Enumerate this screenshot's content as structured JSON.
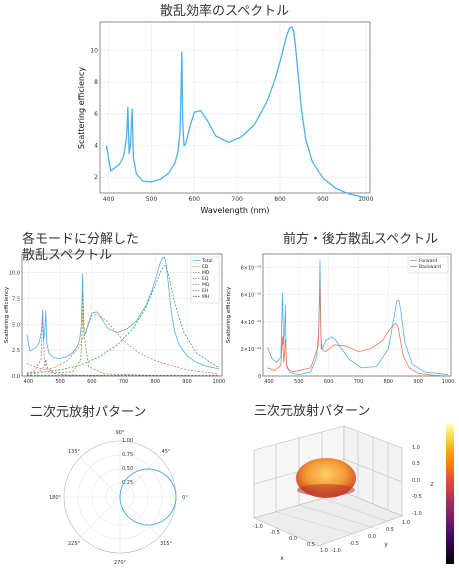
{
  "panels": {
    "spectrum": {
      "title": "散乱効率のスペクトル",
      "xlabel": "Wavelength (nm)",
      "ylabel": "Scattering efficiency"
    },
    "decomp": {
      "title": "各モードに分解した\n散乱スペクトル",
      "ylabel": "Scattering efficiency"
    },
    "fb": {
      "title": "前方・後方散乱スペクトル",
      "ylabel": "Scattering efficiency"
    },
    "polar": {
      "title": "二次元放射パターン"
    },
    "pattern3d": {
      "title": "三次元放射パターン"
    }
  },
  "chart_data": [
    {
      "type": "line",
      "title": "散乱効率のスペクトル",
      "xlabel": "Wavelength (nm)",
      "ylabel": "Scattering efficiency",
      "xlim": [
        380,
        1010
      ],
      "ylim": [
        1,
        11.8
      ],
      "xticks": [
        "400",
        "500",
        "600",
        "700",
        "800",
        "900",
        "1000"
      ],
      "yticks": [
        "2",
        "4",
        "6",
        "8",
        "10"
      ],
      "grid": true,
      "series": [
        {
          "color": "#4fb0e6",
          "x": [
            395,
            405,
            415,
            425,
            435,
            442,
            445,
            448,
            451,
            455,
            458,
            465,
            480,
            500,
            520,
            540,
            555,
            562,
            567,
            571,
            573,
            576,
            580,
            590,
            600,
            615,
            630,
            650,
            680,
            710,
            740,
            770,
            790,
            805,
            815,
            822,
            828,
            832,
            836,
            842,
            850,
            860,
            875,
            900,
            930,
            960,
            1000
          ],
          "y": [
            4.0,
            2.4,
            2.6,
            2.8,
            3.3,
            4.5,
            6.4,
            3.5,
            4.0,
            6.3,
            3.2,
            2.2,
            1.75,
            1.7,
            1.85,
            2.25,
            2.9,
            3.6,
            5.0,
            9.9,
            5.5,
            4.0,
            4.1,
            5.2,
            6.1,
            6.2,
            5.6,
            4.6,
            4.2,
            4.55,
            5.3,
            6.8,
            8.3,
            9.8,
            10.9,
            11.4,
            11.5,
            11.2,
            10.3,
            8.6,
            6.3,
            4.4,
            3.0,
            1.95,
            1.3,
            0.95,
            0.7
          ]
        }
      ]
    },
    {
      "type": "line",
      "title": "各モードに分解した\n散乱スペクトル",
      "xlabel": "",
      "ylabel": "Scattering efficiency",
      "xlim": [
        380,
        1010
      ],
      "ylim": [
        0,
        11.8
      ],
      "xticks": [
        "400",
        "500",
        "600",
        "700",
        "800",
        "900",
        "1000"
      ],
      "yticks": [
        "0.0",
        "2.5",
        "5.0",
        "7.5",
        "10.0"
      ],
      "grid": true,
      "legend": "top-right",
      "series": [
        {
          "name": "Total",
          "color": "#4fb0e6",
          "dash": "",
          "x": [
            395,
            405,
            415,
            425,
            435,
            442,
            445,
            448,
            451,
            455,
            458,
            465,
            480,
            500,
            520,
            540,
            555,
            562,
            567,
            571,
            573,
            576,
            580,
            590,
            600,
            615,
            630,
            650,
            680,
            710,
            740,
            770,
            790,
            805,
            815,
            822,
            828,
            832,
            836,
            842,
            850,
            860,
            875,
            900,
            930,
            960,
            1000
          ],
          "y": [
            4.0,
            2.4,
            2.6,
            2.8,
            3.3,
            4.5,
            6.4,
            3.5,
            4.0,
            6.3,
            3.2,
            2.2,
            1.75,
            1.7,
            1.85,
            2.25,
            2.9,
            3.6,
            5.0,
            9.9,
            5.5,
            4.0,
            4.1,
            5.2,
            6.1,
            6.2,
            5.6,
            4.6,
            4.2,
            4.55,
            5.3,
            6.8,
            8.3,
            9.8,
            10.9,
            11.4,
            11.5,
            11.2,
            10.3,
            8.6,
            6.3,
            4.4,
            3.0,
            1.95,
            1.3,
            0.95,
            0.7
          ]
        },
        {
          "name": "ED",
          "color": "#e4785a",
          "dash": "2,1.5",
          "x": [
            395,
            420,
            450,
            480,
            520,
            560,
            580,
            600,
            620,
            650,
            700,
            750,
            800,
            850,
            900,
            950,
            1000
          ],
          "y": [
            1.2,
            0.9,
            0.6,
            0.8,
            1.4,
            2.8,
            4.2,
            5.8,
            6.0,
            5.2,
            3.4,
            2.2,
            1.5,
            1.0,
            0.6,
            0.4,
            0.2
          ]
        },
        {
          "name": "MD",
          "color": "#3a9e6a",
          "dash": "2,1.5",
          "x": [
            395,
            450,
            500,
            560,
            620,
            680,
            730,
            770,
            800,
            820,
            830,
            840,
            860,
            890,
            930,
            1000
          ],
          "y": [
            0.3,
            0.4,
            0.6,
            1.0,
            1.8,
            3.0,
            4.6,
            6.6,
            8.8,
            10.3,
            10.7,
            10.0,
            7.2,
            4.2,
            2.2,
            0.8
          ]
        },
        {
          "name": "EQ",
          "color": "#c760b4",
          "dash": "2,1.5",
          "x": [
            395,
            420,
            440,
            445,
            450,
            455,
            460,
            480,
            520,
            600,
            800,
            1000
          ],
          "y": [
            0.2,
            0.5,
            1.6,
            5.9,
            1.8,
            0.8,
            0.5,
            0.25,
            0.1,
            0.05,
            0.0,
            0.0
          ]
        },
        {
          "name": "MQ",
          "color": "#8f8f36",
          "dash": "2,1.5",
          "x": [
            395,
            430,
            450,
            455,
            460,
            480,
            540,
            565,
            570,
            572,
            576,
            590,
            640,
            800,
            1000
          ],
          "y": [
            0.1,
            0.3,
            0.9,
            1.6,
            0.8,
            0.3,
            0.4,
            1.6,
            4.8,
            8.2,
            3.8,
            0.9,
            0.2,
            0.05,
            0.0
          ]
        },
        {
          "name": "EH",
          "color": "#36a3a0",
          "dash": "2,1.5",
          "x": [
            395,
            1000
          ],
          "y": [
            0.05,
            0.05
          ]
        },
        {
          "name": "MH",
          "color": "#555555",
          "dash": "2,1.5",
          "x": [
            395,
            1000
          ],
          "y": [
            0.02,
            0.02
          ]
        }
      ]
    },
    {
      "type": "line",
      "title": "前方・後方散乱スペクトル",
      "xlabel": "",
      "ylabel": "Scattering efficiency",
      "xlim": [
        380,
        1010
      ],
      "ylim": [
        0,
        9e-14
      ],
      "xticks": [
        "400",
        "500",
        "600",
        "700",
        "800",
        "900",
        "1000"
      ],
      "yticks": [
        "0",
        "2×10⁻¹⁴",
        "4×10⁻¹⁴",
        "6×10⁻¹⁴",
        "8×10⁻¹⁴"
      ],
      "grid": true,
      "legend": "top-right",
      "series": [
        {
          "name": "Forward",
          "color": "#4fb0e6",
          "dash": "",
          "x": [
            395,
            410,
            425,
            440,
            445,
            449,
            452,
            455,
            458,
            470,
            500,
            540,
            560,
            567,
            571,
            574,
            578,
            590,
            610,
            625,
            640,
            670,
            710,
            760,
            800,
            815,
            828,
            835,
            842,
            855,
            880,
            920,
            1000
          ],
          "y": [
            2.1e-14,
            1.3e-14,
            1e-14,
            1.4e-14,
            6.1e-14,
            2.3e-14,
            3.2e-14,
            5.2e-14,
            9e-15,
            2.5e-15,
            1e-15,
            3e-15,
            1.4e-14,
            3.5e-14,
            8.5e-14,
            3e-14,
            2e-14,
            2.6e-14,
            2.9e-14,
            2.6e-14,
            2.1e-14,
            1.2e-14,
            6e-15,
            7e-15,
            2e-14,
            3.8e-14,
            5.5e-14,
            5.6e-14,
            4.8e-14,
            2.5e-14,
            9e-15,
            3e-15,
            1e-15
          ]
        },
        {
          "name": "Backward",
          "color": "#e4785a",
          "dash": "",
          "x": [
            395,
            420,
            440,
            445,
            450,
            455,
            460,
            480,
            540,
            565,
            571,
            575,
            590,
            620,
            660,
            700,
            740,
            780,
            810,
            825,
            832,
            840,
            850,
            870,
            900,
            950,
            1000
          ],
          "y": [
            6e-15,
            4e-15,
            8e-15,
            2.9e-14,
            1e-14,
            2.7e-14,
            6e-15,
            3e-15,
            6e-15,
            2.2e-14,
            6.7e-14,
            2e-14,
            1.8e-14,
            2.3e-14,
            2.2e-14,
            1.8e-14,
            2e-14,
            2.6e-14,
            3.6e-14,
            3.9e-14,
            3.7e-14,
            2.7e-14,
            1.5e-14,
            6e-15,
            2e-15,
            5e-16,
            0.0
          ]
        }
      ]
    },
    {
      "type": "scatter",
      "title": "二次元放射パターン",
      "angle_ticks": [
        "0°",
        "45°",
        "90°",
        "135°",
        "180°",
        "225°",
        "270°",
        "315°"
      ],
      "radial_ticks": [
        "0.25",
        "0.50",
        "0.75",
        "1.00"
      ],
      "rlim": [
        0,
        1.0
      ],
      "series": [
        {
          "color": "#4fb0e6",
          "theta_deg": [
            -90,
            -60,
            -30,
            0,
            30,
            60,
            90
          ],
          "r": [
            0.0,
            0.5,
            0.866,
            1.0,
            0.866,
            0.5,
            0.0
          ]
        }
      ]
    },
    {
      "type": "scatter",
      "title": "三次元放射パターン",
      "axis_labels": [
        "x",
        "y",
        "z"
      ],
      "x_ticks": [
        "-1.0",
        "-0.5",
        "0.0",
        "0.5",
        "1.0"
      ],
      "y_ticks": [
        "-1.0",
        "-0.5",
        "0.0",
        "0.5",
        "1.0"
      ],
      "z_ticks": [
        "-1.0",
        "-0.5",
        "0.0",
        "0.5",
        "1.0"
      ],
      "colormap": [
        "#000004",
        "#420a68",
        "#932667",
        "#dd513a",
        "#fca50a",
        "#fcffa4"
      ]
    }
  ]
}
